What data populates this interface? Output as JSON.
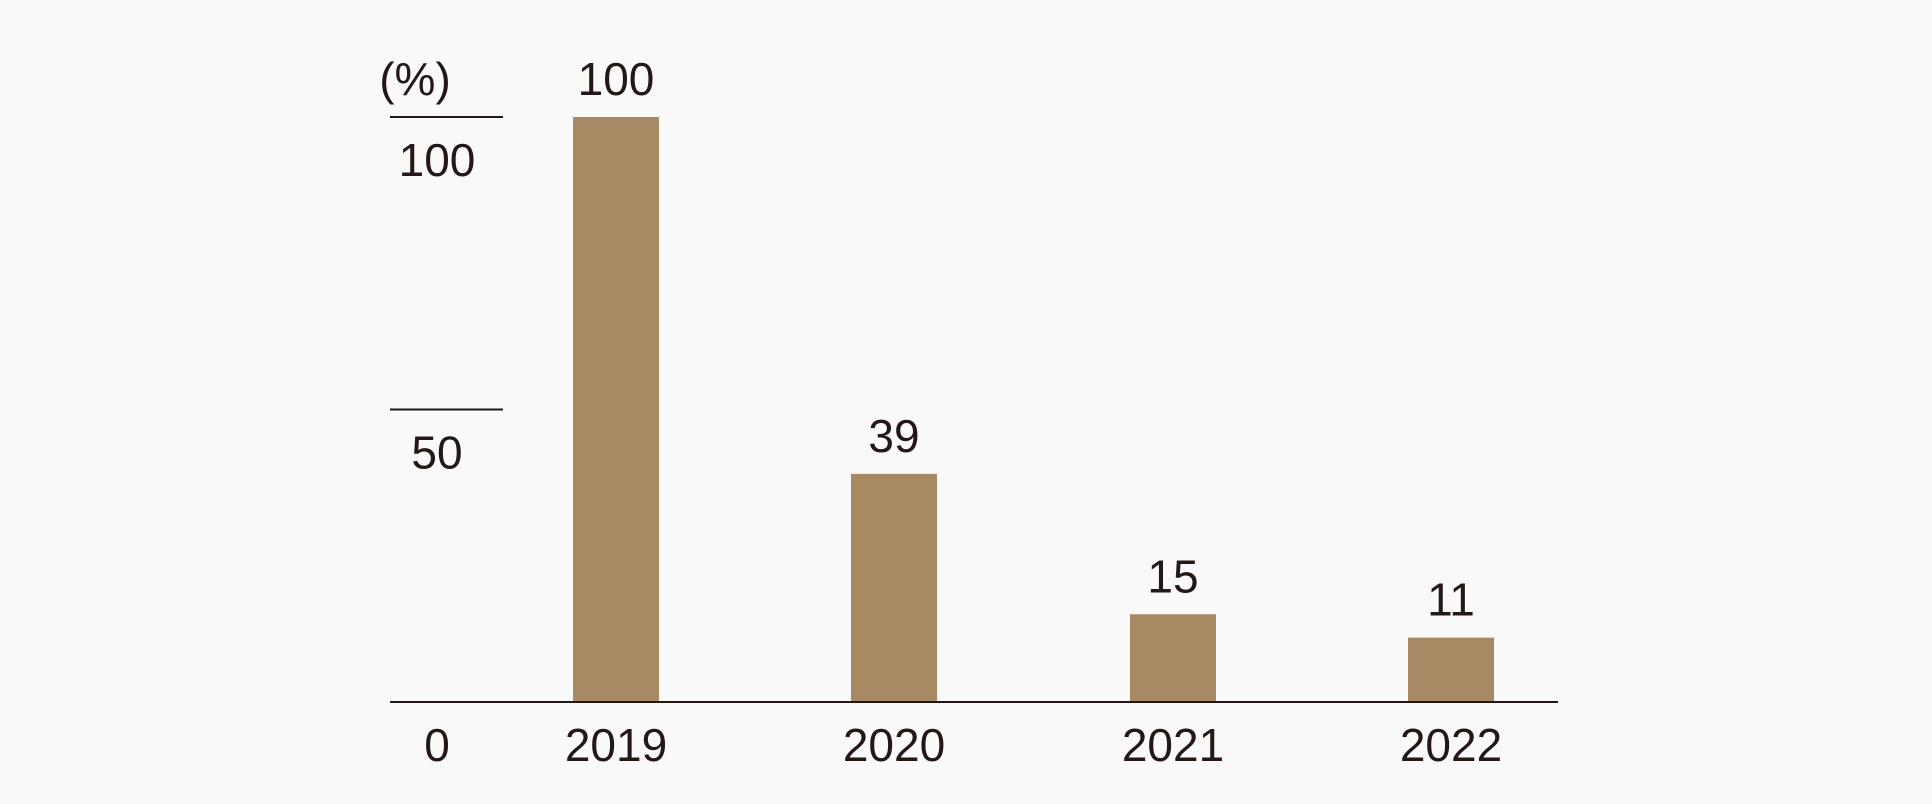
{
  "chart_data": {
    "type": "bar",
    "title": "",
    "xlabel": "",
    "ylabel": "",
    "unit_label": "(%)",
    "categories": [
      "2019",
      "2020",
      "2021",
      "2022"
    ],
    "values": [
      100,
      39,
      15,
      11
    ],
    "data_labels": [
      "100",
      "39",
      "15",
      "11"
    ],
    "ylim": [
      0,
      100
    ],
    "y_ticks": [
      {
        "value": 0,
        "label": "0"
      },
      {
        "value": 50,
        "label": "50"
      },
      {
        "value": 100,
        "label": "100"
      }
    ],
    "grid": false,
    "legend": "none",
    "colors": {
      "bar": "#a78963",
      "axis": "#231815",
      "text": "#231815",
      "background": "#f9f9f9"
    }
  }
}
